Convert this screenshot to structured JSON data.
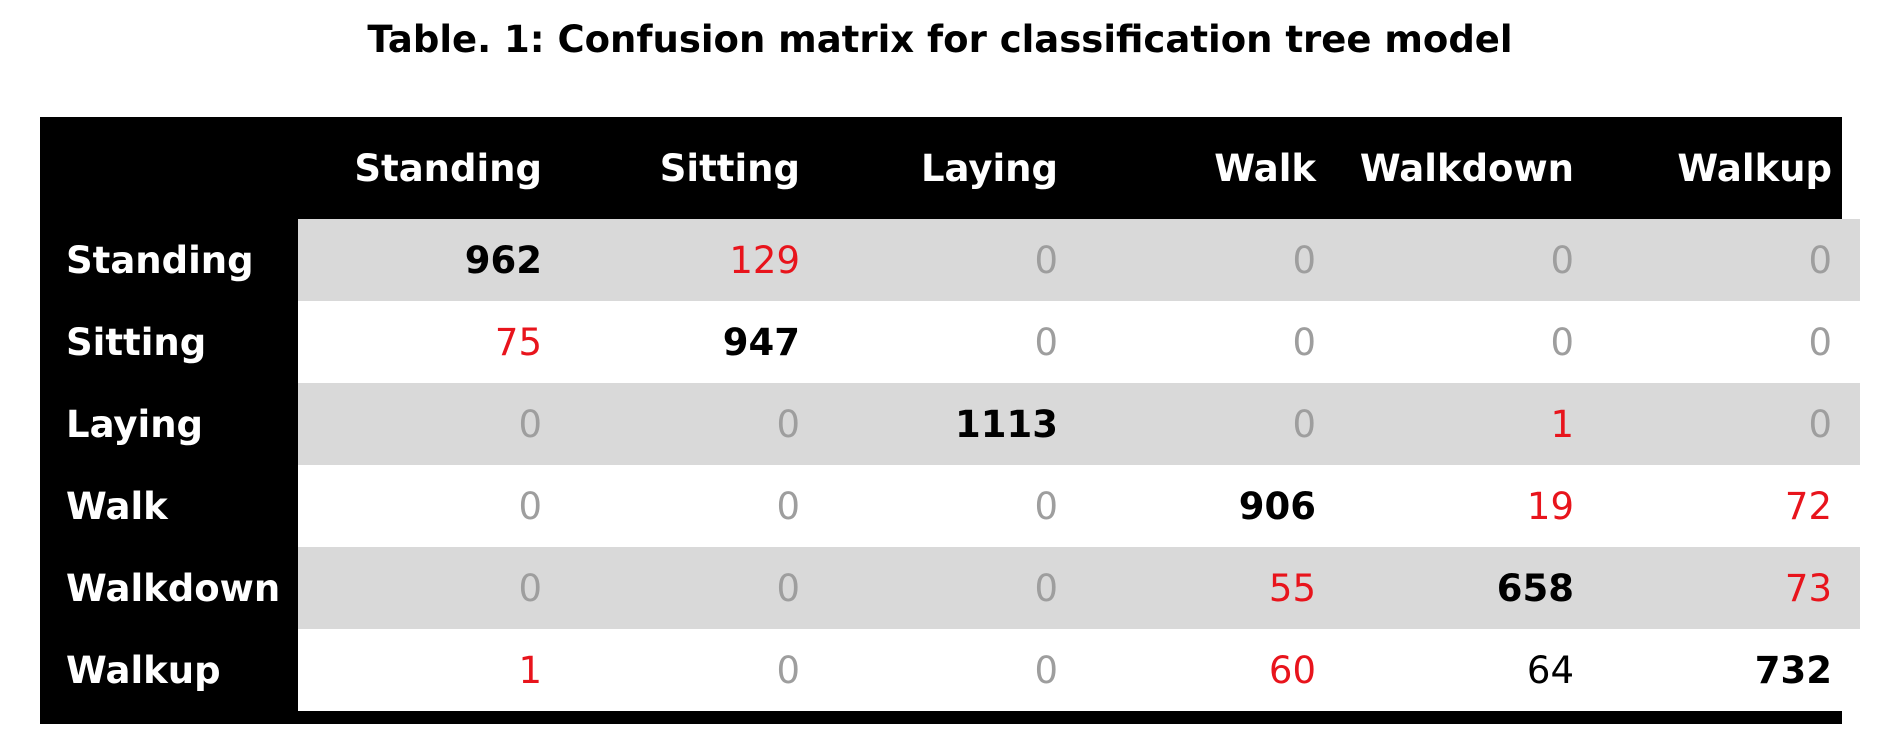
{
  "chart_data": {
    "type": "table",
    "title": "Table. 1: Confusion matrix for classification tree model",
    "columns": [
      "Standing",
      "Sitting",
      "Laying",
      "Walk",
      "Walkdown",
      "Walkup"
    ],
    "rows": [
      "Standing",
      "Sitting",
      "Laying",
      "Walk",
      "Walkdown",
      "Walkup"
    ],
    "values": [
      [
        962,
        129,
        0,
        0,
        0,
        0
      ],
      [
        75,
        947,
        0,
        0,
        0,
        0
      ],
      [
        0,
        0,
        1113,
        0,
        1,
        0
      ],
      [
        0,
        0,
        0,
        906,
        19,
        72
      ],
      [
        0,
        0,
        0,
        55,
        658,
        73
      ],
      [
        1,
        0,
        0,
        60,
        64,
        732
      ]
    ]
  },
  "colors": {
    "header_bg": "#000000",
    "header_text": "#ffffff",
    "band_gray": "#d9d9d9",
    "band_white": "#ffffff",
    "diagonal": "#000000",
    "misclassified": "#e8141c",
    "zero": "#9e9e9e",
    "plain": "#000000"
  }
}
